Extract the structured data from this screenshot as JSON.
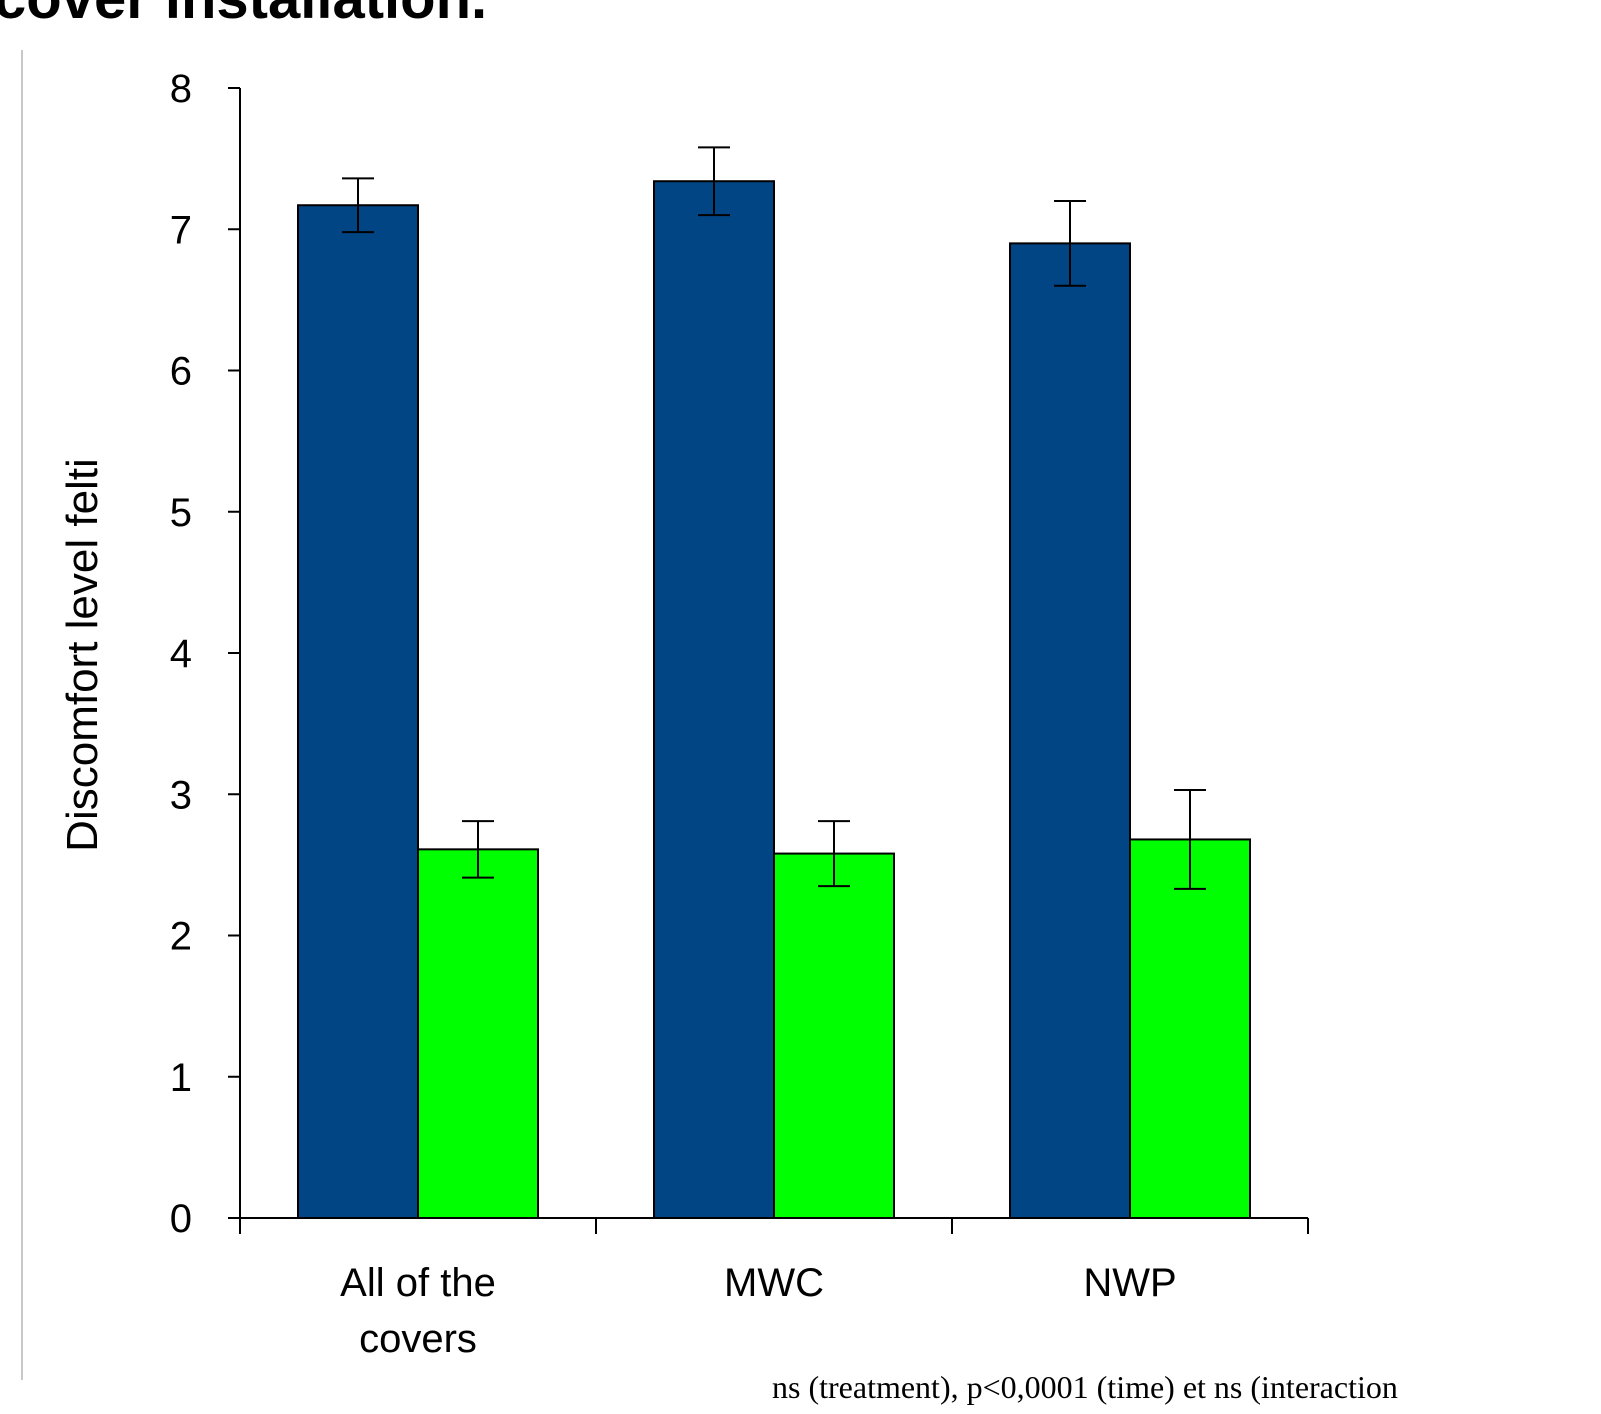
{
  "chart_data": {
    "type": "bar",
    "title": "cover installation.",
    "ylabel": "Discomfort level felti",
    "xlabel": "",
    "ylim": [
      0,
      8
    ],
    "yticks": [
      "0",
      "1",
      "2",
      "3",
      "4",
      "5",
      "6",
      "7",
      "8"
    ],
    "categories": [
      [
        "All of the",
        "covers"
      ],
      [
        "MWC"
      ],
      [
        "NWP"
      ]
    ],
    "series": [
      {
        "color": "#024585",
        "values": [
          7.17,
          7.34,
          6.9
        ],
        "error": [
          0.19,
          0.24,
          0.3
        ]
      },
      {
        "color": "#00ff00",
        "values": [
          2.61,
          2.58,
          2.68
        ],
        "error": [
          0.2,
          0.23,
          0.35
        ]
      }
    ],
    "note": "ns (treatment),  p<0,0001 (time)  et ns (interaction",
    "grid": false,
    "legend": "none"
  }
}
